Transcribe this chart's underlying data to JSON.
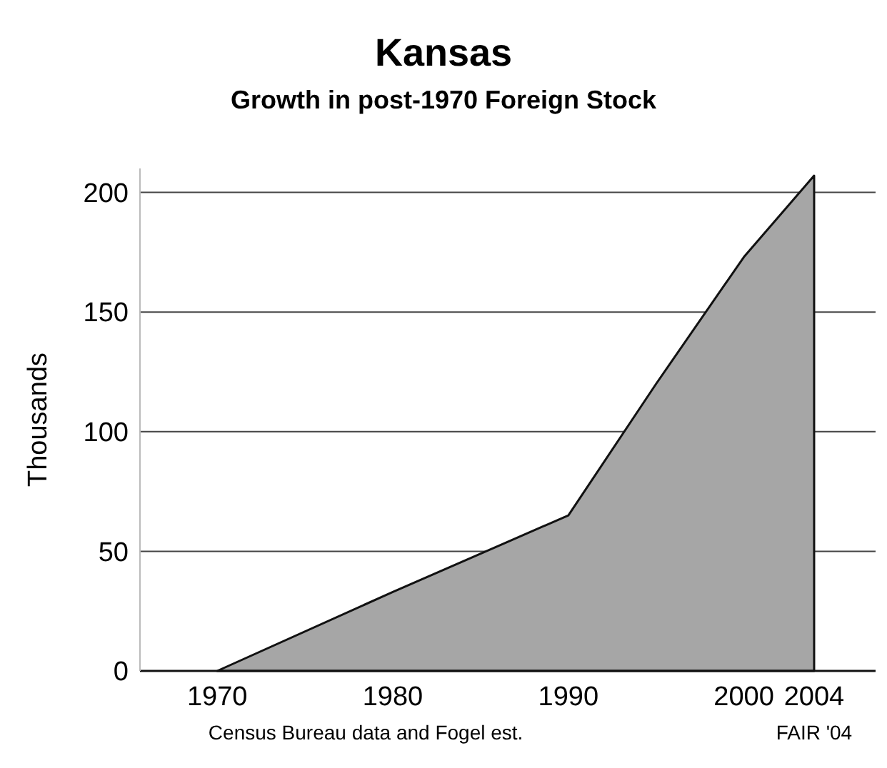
{
  "chart_data": {
    "type": "area",
    "title": "Kansas",
    "subtitle": "Growth in post-1970 Foreign Stock",
    "ylabel": "Thousands",
    "x": [
      1970,
      1980,
      1990,
      1995,
      2000,
      2004
    ],
    "series": [
      {
        "color": "#a6a6a6",
        "values": [
          0,
          33,
          65,
          120,
          173,
          207
        ]
      }
    ],
    "xlim": [
      1965.6,
      2007.5
    ],
    "xticks": [
      1970,
      1980,
      1990,
      2000,
      2004
    ],
    "ylim": [
      0,
      210
    ],
    "yticks": [
      0,
      50,
      100,
      150,
      200
    ],
    "grid": "y",
    "annotations": [
      "Census Bureau data and Fogel est.",
      "FAIR '04"
    ]
  }
}
